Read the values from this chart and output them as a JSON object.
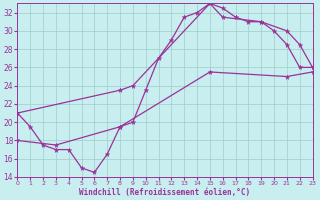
{
  "xlabel": "Windchill (Refroidissement éolien,°C)",
  "bg_color": "#c8eef0",
  "grid_color": "#a0ccc8",
  "line_color": "#993399",
  "xlim": [
    0,
    23
  ],
  "ylim": [
    14,
    33
  ],
  "xticks": [
    0,
    1,
    2,
    3,
    4,
    5,
    6,
    7,
    8,
    9,
    10,
    11,
    12,
    13,
    14,
    15,
    16,
    17,
    18,
    19,
    20,
    21,
    22,
    23
  ],
  "yticks": [
    14,
    16,
    18,
    20,
    22,
    24,
    26,
    28,
    30,
    32
  ],
  "series": [
    {
      "x": [
        0,
        1,
        2,
        3,
        4,
        5,
        6,
        7,
        8,
        9,
        10,
        11,
        12,
        13,
        14,
        15,
        16,
        17,
        18,
        19,
        20,
        21,
        22,
        23
      ],
      "y": [
        21.0,
        19.5,
        17.5,
        17.0,
        17.0,
        15.0,
        14.5,
        16.5,
        19.5,
        20.0,
        23.5,
        27.0,
        29.0,
        31.5,
        32.0,
        33.0,
        32.5,
        31.5,
        31.0,
        31.0,
        30.0,
        28.5,
        26.0,
        26.0
      ]
    },
    {
      "x": [
        0,
        8,
        9,
        15,
        16,
        19,
        21,
        22,
        23
      ],
      "y": [
        21.0,
        23.5,
        24.0,
        33.0,
        31.5,
        31.0,
        30.0,
        28.5,
        26.0
      ]
    },
    {
      "x": [
        0,
        3,
        8,
        15,
        21,
        23
      ],
      "y": [
        18.0,
        17.5,
        19.5,
        25.5,
        25.0,
        25.5
      ]
    }
  ]
}
